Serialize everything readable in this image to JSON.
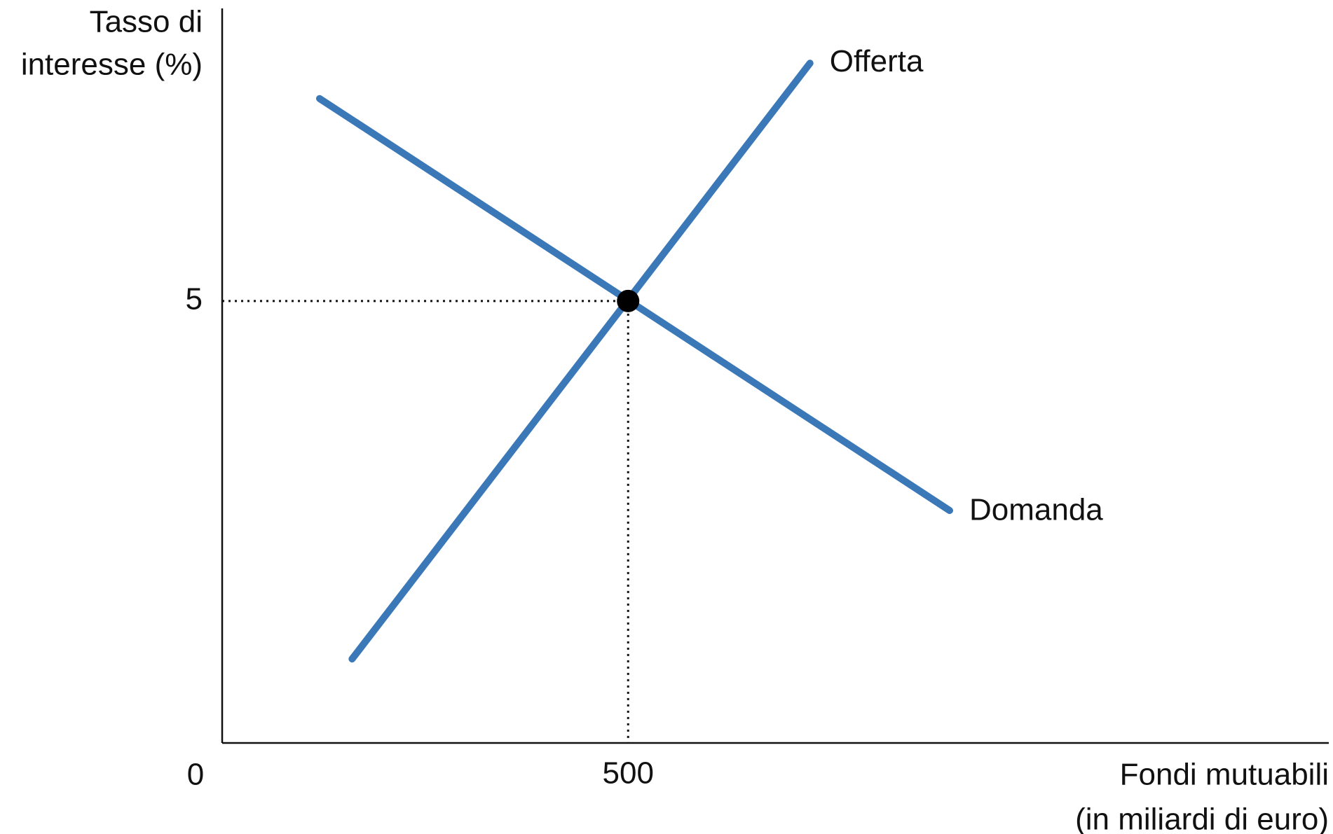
{
  "chart_data": {
    "type": "line",
    "y_label": [
      "Tasso di",
      "interesse (%)"
    ],
    "x_label": [
      "Fondi mutuabili",
      "(in miliardi di euro)"
    ],
    "series": [
      {
        "name": "Offerta",
        "color": "#3a78b8",
        "x": [
          160,
          724
        ],
        "values": [
          0.95,
          7.69
        ]
      },
      {
        "name": "Domanda",
        "color": "#3a78b8",
        "x": [
          120,
          896
        ],
        "values": [
          7.29,
          2.63
        ]
      }
    ],
    "equilibrium": {
      "x": 500,
      "y": 5
    },
    "xlim": [
      0,
      1363
    ],
    "ylim": [
      0,
      8.31
    ],
    "xticks": [
      0,
      500
    ],
    "yticks": [
      5
    ],
    "grid": false
  }
}
